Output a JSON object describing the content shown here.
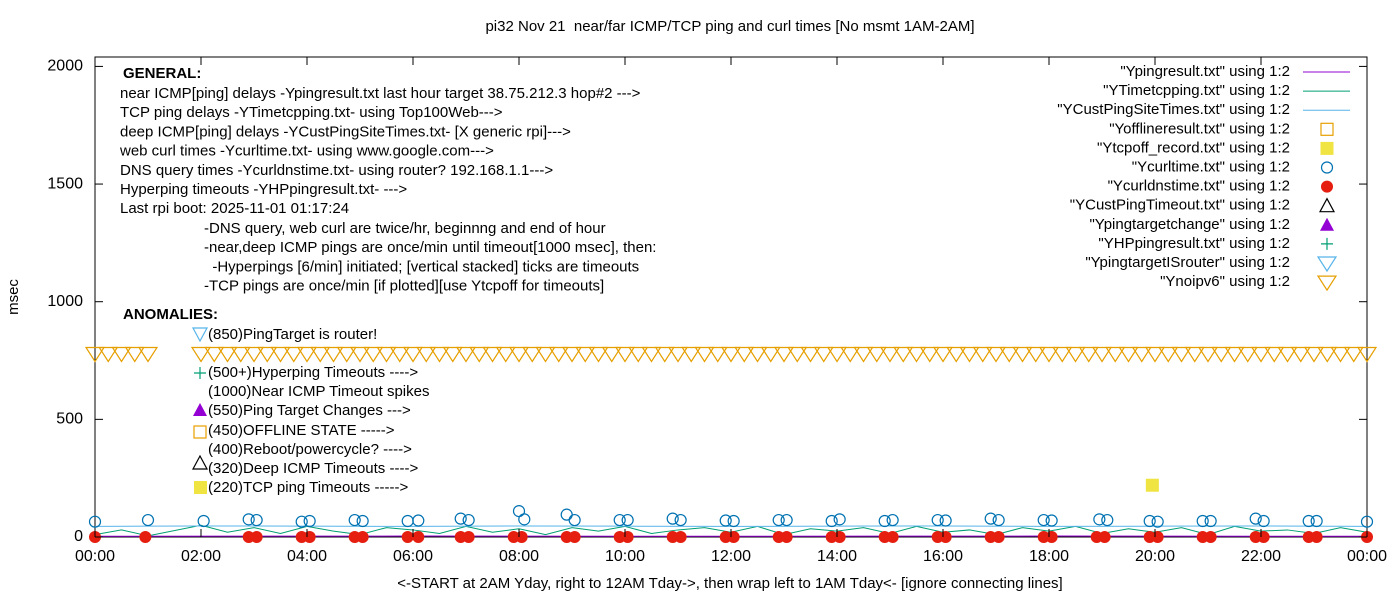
{
  "chart_data": {
    "type": "scatter",
    "title": "pi32 Nov 21  near/far ICMP/TCP ping and curl times [No msmt 1AM-2AM]",
    "x_label": "<-START at 2AM Yday, right to 12AM Tday->, then wrap left to 1AM Tday<- [ignore connecting lines]",
    "y_label": "msec",
    "xlim": [
      0,
      24
    ],
    "ylim": [
      0,
      2040
    ],
    "xticks": [
      {
        "value": 0,
        "label": "00:00"
      },
      {
        "value": 2,
        "label": "02:00"
      },
      {
        "value": 4,
        "label": "04:00"
      },
      {
        "value": 6,
        "label": "06:00"
      },
      {
        "value": 8,
        "label": "08:00"
      },
      {
        "value": 10,
        "label": "10:00"
      },
      {
        "value": 12,
        "label": "12:00"
      },
      {
        "value": 14,
        "label": "14:00"
      },
      {
        "value": 16,
        "label": "16:00"
      },
      {
        "value": 18,
        "label": "18:00"
      },
      {
        "value": 20,
        "label": "20:00"
      },
      {
        "value": 22,
        "label": "22:00"
      },
      {
        "value": 24,
        "label": "00:00"
      }
    ],
    "yticks": [
      0,
      500,
      1000,
      1500,
      2000
    ],
    "general_heading": "GENERAL:",
    "general_lines": [
      "near ICMP[ping] delays -Ypingresult.txt last hour target 38.75.212.3 hop#2 --->",
      "TCP ping delays -YTimetcpping.txt- using Top100Web--->",
      "deep ICMP[ping] delays -YCustPingSiteTimes.txt- [X generic rpi]--->",
      "web curl times -Ycurltime.txt- using www.google.com--->",
      "DNS query times -Ycurldnstime.txt- using router? 192.168.1.1--->",
      "Hyperping timeouts -YHPpingresult.txt- --->",
      "Last rpi boot: 2025-11-01 01:17:24"
    ],
    "notes": [
      "-DNS query, web curl are twice/hr, beginnng and end of hour",
      "-near,deep ICMP pings are once/min until timeout[1000 msec], then:",
      "  -Hyperpings [6/min] initiated; [vertical stacked] ticks are timeouts",
      "-TCP pings are once/min [if plotted][use Ytcpoff for timeouts]"
    ],
    "anomalies_heading": "ANOMALIES:",
    "anomalies": [
      "(850)PingTarget is router!",
      "(500+)Hyperping Timeouts ---->",
      "(1000)Near ICMP Timeout spikes",
      "(550)Ping Target Changes --->",
      "(450)OFFLINE STATE ----->",
      "(400)Reboot/powercycle? ---->",
      "(320)Deep ICMP Timeouts ---->",
      "(220)TCP ping Timeouts ----->"
    ],
    "series": [
      {
        "name": "\"Ypingresult.txt\" using 1:2",
        "marker": "line",
        "color": "#9400d3",
        "x": [
          0,
          6,
          12,
          18,
          24
        ],
        "values": [
          3,
          4,
          3,
          4,
          3
        ]
      },
      {
        "name": "\"YTimetcpping.txt\" using 1:2",
        "marker": "line",
        "color": "#009e73",
        "x": [
          0,
          0.5,
          1,
          2,
          2.5,
          3,
          3.5,
          4,
          4.5,
          5,
          5.5,
          6,
          6.5,
          7,
          7.5,
          8,
          8.5,
          9,
          9.5,
          10,
          10.5,
          11,
          11.5,
          12,
          12.5,
          13,
          13.5,
          14,
          14.5,
          15,
          15.5,
          16,
          16.5,
          17,
          17.5,
          18,
          18.5,
          19,
          19.5,
          20,
          20.5,
          21,
          21.5,
          22,
          22.5,
          23,
          23.5,
          24
        ],
        "values": [
          10,
          30,
          5,
          50,
          20,
          40,
          15,
          45,
          25,
          10,
          40,
          30,
          15,
          45,
          20,
          35,
          10,
          40,
          25,
          45,
          15,
          30,
          40,
          20,
          45,
          10,
          35,
          25,
          40,
          15,
          45,
          20,
          30,
          10,
          40,
          25,
          45,
          15,
          35,
          20,
          40,
          10,
          45,
          25,
          30,
          15,
          40,
          20
        ]
      },
      {
        "name": "\"YCustPingSiteTimes.txt\" using 1:2",
        "marker": "line",
        "color": "#56b4e9",
        "x": [
          0,
          1,
          2,
          4,
          6,
          8,
          10,
          12,
          14,
          16,
          18,
          20,
          22,
          24
        ],
        "values": [
          45,
          46,
          47,
          46,
          45,
          47,
          46,
          45,
          46,
          47,
          45,
          46,
          47,
          45
        ]
      },
      {
        "name": "\"Yofflineresult.txt\" using 1:2",
        "marker": "square-open",
        "color": "#e69f00",
        "x": [],
        "values": []
      },
      {
        "name": "\"Ytcpoff_record.txt\" using 1:2",
        "marker": "square-filled",
        "color": "#f0e442",
        "x": [
          19.95
        ],
        "values": [
          220
        ]
      },
      {
        "name": "\"Ycurltime.txt\" using 1:2",
        "marker": "circle-open",
        "color": "#0072b2",
        "x": [
          0,
          1,
          2.05,
          2.9,
          3.05,
          3.9,
          4.05,
          4.9,
          5.05,
          5.9,
          6.1,
          6.9,
          7.05,
          8,
          8.1,
          8.9,
          9.05,
          9.9,
          10.05,
          10.9,
          11.05,
          11.9,
          12.05,
          12.9,
          13.05,
          13.9,
          14.05,
          14.9,
          15.05,
          15.9,
          16.05,
          16.9,
          17.05,
          17.9,
          18.05,
          18.95,
          19.1,
          19.9,
          20.05,
          20.9,
          21.05,
          21.9,
          22.05,
          22.9,
          23.05,
          24
        ],
        "values": [
          65,
          72,
          68,
          75,
          72,
          65,
          68,
          72,
          68,
          68,
          70,
          78,
          72,
          110,
          75,
          95,
          72,
          72,
          72,
          78,
          72,
          70,
          68,
          72,
          72,
          68,
          75,
          68,
          72,
          72,
          70,
          78,
          72,
          72,
          70,
          75,
          72,
          68,
          65,
          68,
          68,
          78,
          68,
          68,
          68,
          65
        ]
      },
      {
        "name": "\"Ycurldnstime.txt\" using 1:2",
        "marker": "circle-filled",
        "color": "#e51e10",
        "x": [
          0,
          0.95,
          2.9,
          3.05,
          3.9,
          4.05,
          4.9,
          5.05,
          5.9,
          6.1,
          6.9,
          7.05,
          7.9,
          8.05,
          8.9,
          9.05,
          9.9,
          10.05,
          10.9,
          11.05,
          11.9,
          12.05,
          12.9,
          13.05,
          13.9,
          14.05,
          14.9,
          15.05,
          15.9,
          16.05,
          16.9,
          17.05,
          17.9,
          18.05,
          18.9,
          19.05,
          19.9,
          20.05,
          20.9,
          21.05,
          21.9,
          22.05,
          22.9,
          23.05,
          24
        ],
        "values": [
          0,
          0,
          0,
          0,
          0,
          0,
          0,
          0,
          0,
          0,
          0,
          0,
          0,
          0,
          0,
          0,
          0,
          0,
          0,
          0,
          0,
          0,
          0,
          0,
          0,
          0,
          0,
          0,
          0,
          0,
          0,
          0,
          0,
          0,
          0,
          0,
          0,
          0,
          0,
          0,
          0,
          0,
          0,
          0,
          0
        ]
      },
      {
        "name": "\"YCustPingTimeout.txt\" using 1:2",
        "marker": "triangle-open",
        "color": "#000000",
        "x": [],
        "values": []
      },
      {
        "name": "\"Ypingtargetchange\" using 1:2",
        "marker": "triangle-filled",
        "color": "#9400d3",
        "x": [],
        "values": []
      },
      {
        "name": "\"YHPpingresult.txt\" using 1:2",
        "marker": "plus",
        "color": "#009e73",
        "x": [],
        "values": []
      },
      {
        "name": "\"YpingtargetISrouter\" using 1:2",
        "marker": "triangle-down-open",
        "color": "#56b4e9",
        "x": [],
        "values": []
      },
      {
        "name": "\"Ynoipv6\" using 1:2",
        "marker": "triangle-down-open",
        "color": "#e69f00",
        "x": [
          0,
          0.25,
          0.5,
          0.75,
          1,
          2,
          2.25,
          2.5,
          2.75,
          3,
          3.25,
          3.5,
          3.75,
          4,
          4.25,
          4.5,
          4.75,
          5,
          5.25,
          5.5,
          5.75,
          6,
          6.25,
          6.5,
          6.75,
          7,
          7.25,
          7.5,
          7.75,
          8,
          8.25,
          8.5,
          8.75,
          9,
          9.25,
          9.5,
          9.75,
          10,
          10.25,
          10.5,
          10.75,
          11,
          11.25,
          11.5,
          11.75,
          12,
          12.25,
          12.5,
          12.75,
          13,
          13.25,
          13.5,
          13.75,
          14,
          14.25,
          14.5,
          14.75,
          15,
          15.25,
          15.5,
          15.75,
          16,
          16.25,
          16.5,
          16.75,
          17,
          17.25,
          17.5,
          17.75,
          18,
          18.25,
          18.5,
          18.75,
          19,
          19.25,
          19.5,
          19.75,
          20,
          20.25,
          20.5,
          20.75,
          21,
          21.25,
          21.5,
          21.75,
          22,
          22.25,
          22.5,
          22.75,
          23,
          23.25,
          23.5,
          23.75,
          24
        ],
        "values": [
          780,
          780,
          780,
          780,
          780,
          780,
          780,
          780,
          780,
          780,
          780,
          780,
          780,
          780,
          780,
          780,
          780,
          780,
          780,
          780,
          780,
          780,
          780,
          780,
          780,
          780,
          780,
          780,
          780,
          780,
          780,
          780,
          780,
          780,
          780,
          780,
          780,
          780,
          780,
          780,
          780,
          780,
          780,
          780,
          780,
          780,
          780,
          780,
          780,
          780,
          780,
          780,
          780,
          780,
          780,
          780,
          780,
          780,
          780,
          780,
          780,
          780,
          780,
          780,
          780,
          780,
          780,
          780,
          780,
          780,
          780,
          780,
          780,
          780,
          780,
          780,
          780,
          780,
          780,
          780,
          780,
          780,
          780,
          780,
          780,
          780,
          780,
          780,
          780,
          780,
          780,
          780,
          780,
          780
        ]
      }
    ]
  }
}
